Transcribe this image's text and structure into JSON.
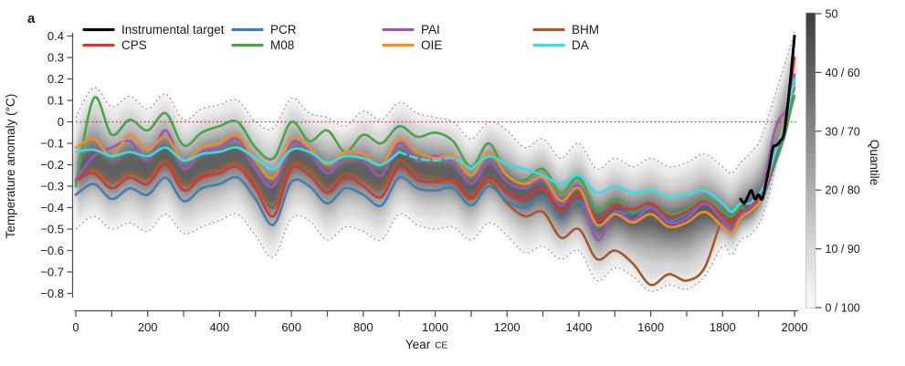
{
  "panel_label": "a",
  "axes": {
    "y_title": "Temperature anomaly (°C)",
    "x_title": "Year",
    "x_title_suffix": "CE",
    "y_ticks": [
      {
        "v": 0.4,
        "label": "0.4"
      },
      {
        "v": 0.3,
        "label": "0.3"
      },
      {
        "v": 0.2,
        "label": "0.2"
      },
      {
        "v": 0.1,
        "label": "0.1"
      },
      {
        "v": 0.0,
        "label": "0"
      },
      {
        "v": -0.1,
        "label": "−0.1"
      },
      {
        "v": -0.2,
        "label": "−0.2"
      },
      {
        "v": -0.3,
        "label": "−0.3"
      },
      {
        "v": -0.4,
        "label": "−0.4"
      },
      {
        "v": -0.5,
        "label": "−0.5"
      },
      {
        "v": -0.6,
        "label": "−0.6"
      },
      {
        "v": -0.7,
        "label": "−0.7"
      },
      {
        "v": -0.8,
        "label": "−0.8"
      }
    ],
    "x_ticks": [
      {
        "v": 0,
        "label": "0"
      },
      {
        "v": 100
      },
      {
        "v": 200,
        "label": "200"
      },
      {
        "v": 300
      },
      {
        "v": 400,
        "label": "400"
      },
      {
        "v": 500
      },
      {
        "v": 600,
        "label": "600"
      },
      {
        "v": 700
      },
      {
        "v": 800,
        "label": "800"
      },
      {
        "v": 900
      },
      {
        "v": 1000,
        "label": "1000"
      },
      {
        "v": 1100
      },
      {
        "v": 1200,
        "label": "1200"
      },
      {
        "v": 1300
      },
      {
        "v": 1400,
        "label": "1400"
      },
      {
        "v": 1500
      },
      {
        "v": 1600,
        "label": "1600"
      },
      {
        "v": 1700
      },
      {
        "v": 1800,
        "label": "1800"
      },
      {
        "v": 1900
      },
      {
        "v": 2000,
        "label": "2000"
      }
    ]
  },
  "legend": {
    "items": [
      {
        "label": "Instrumental target",
        "color": "#000000"
      },
      {
        "label": "CPS",
        "color": "#d9342f"
      },
      {
        "label": "PCR",
        "color": "#3f7fb5"
      },
      {
        "label": "M08",
        "color": "#47a447"
      },
      {
        "label": "PAI",
        "color": "#9a58b8"
      },
      {
        "label": "OIE",
        "color": "#f68b22"
      },
      {
        "label": "BHM",
        "color": "#a35a28"
      },
      {
        "label": "DA",
        "color": "#35dfe5"
      }
    ]
  },
  "colorbar": {
    "title": "Quantile",
    "ticks": [
      {
        "q": 50,
        "label": "50"
      },
      {
        "q": 40,
        "label": "40 / 60"
      },
      {
        "q": 30,
        "label": "30 / 70"
      },
      {
        "q": 20,
        "label": "20 / 80"
      },
      {
        "q": 10,
        "label": "10 / 90"
      },
      {
        "q": 0,
        "label": "0 / 100"
      }
    ],
    "top_color": "#3e3e3e",
    "bottom_color": "#f8f8f8"
  },
  "zero_line": {
    "value": 0,
    "color": "#c43f39"
  },
  "density": {
    "fractions": [
      1.0,
      0.8,
      0.6,
      0.44,
      0.3,
      0.17
    ],
    "colors": [
      "#ebebeb",
      "#d6d6d6",
      "#bcbcbc",
      "#9e9e9e",
      "#7f7f7f",
      "#5f5f5f"
    ],
    "blur": 3.5
  },
  "chart_data": {
    "type": "line",
    "title": "",
    "xlabel": "Year CE",
    "ylabel": "Temperature anomaly (°C)",
    "xlim": [
      0,
      2010
    ],
    "ylim": [
      -0.8,
      0.4
    ],
    "grid": false,
    "legend_position": "top",
    "years": [
      0,
      50,
      100,
      150,
      200,
      250,
      300,
      350,
      400,
      450,
      500,
      550,
      600,
      650,
      700,
      750,
      800,
      850,
      900,
      950,
      1000,
      1050,
      1100,
      1150,
      1200,
      1250,
      1300,
      1350,
      1400,
      1450,
      1500,
      1550,
      1600,
      1650,
      1700,
      1750,
      1800,
      1825,
      1850,
      1875,
      1900,
      1915,
      1930,
      1945,
      1960,
      1975,
      1990,
      2000
    ],
    "series": [
      {
        "name": "BHM",
        "color": "#a35a28",
        "values": [
          -0.28,
          -0.22,
          -0.28,
          -0.24,
          -0.26,
          -0.18,
          -0.29,
          -0.25,
          -0.22,
          -0.19,
          -0.28,
          -0.4,
          -0.2,
          -0.22,
          -0.3,
          -0.24,
          -0.27,
          -0.31,
          -0.18,
          -0.24,
          -0.26,
          -0.28,
          -0.36,
          -0.28,
          -0.38,
          -0.44,
          -0.42,
          -0.54,
          -0.5,
          -0.64,
          -0.6,
          -0.66,
          -0.76,
          -0.71,
          -0.74,
          -0.68,
          -0.45,
          -0.48,
          -0.42,
          -0.41,
          -0.37,
          -0.33,
          -0.26,
          -0.18,
          -0.1,
          -0.01,
          0.1,
          0.16
        ]
      },
      {
        "name": "M08",
        "color": "#47a447",
        "values": [
          -0.3,
          0.11,
          -0.06,
          0.01,
          -0.04,
          0.04,
          -0.11,
          -0.05,
          -0.02,
          0.0,
          -0.12,
          -0.17,
          0.0,
          -0.09,
          -0.04,
          -0.14,
          -0.06,
          -0.1,
          -0.02,
          -0.07,
          -0.05,
          -0.09,
          -0.21,
          -0.1,
          -0.25,
          -0.27,
          -0.22,
          -0.33,
          -0.26,
          -0.41,
          -0.36,
          -0.42,
          -0.38,
          -0.43,
          -0.41,
          -0.36,
          -0.42,
          -0.44,
          -0.4,
          -0.42,
          -0.37,
          -0.33,
          -0.27,
          -0.2,
          -0.13,
          -0.05,
          0.06,
          0.12
        ]
      },
      {
        "name": "PCR",
        "color": "#3f7fb5",
        "values": [
          -0.34,
          -0.29,
          -0.36,
          -0.31,
          -0.34,
          -0.26,
          -0.37,
          -0.31,
          -0.29,
          -0.26,
          -0.36,
          -0.48,
          -0.28,
          -0.3,
          -0.38,
          -0.31,
          -0.34,
          -0.39,
          -0.26,
          -0.31,
          -0.32,
          -0.31,
          -0.39,
          -0.3,
          -0.37,
          -0.4,
          -0.35,
          -0.45,
          -0.37,
          -0.49,
          -0.42,
          -0.43,
          -0.4,
          -0.46,
          -0.43,
          -0.38,
          -0.45,
          -0.47,
          -0.43,
          -0.42,
          -0.38,
          -0.34,
          -0.27,
          -0.18,
          -0.1,
          0.0,
          0.12,
          0.2
        ]
      },
      {
        "name": "CPS",
        "color": "#d9342f",
        "values": [
          -0.27,
          -0.24,
          -0.31,
          -0.26,
          -0.29,
          -0.2,
          -0.32,
          -0.26,
          -0.24,
          -0.21,
          -0.31,
          -0.44,
          -0.22,
          -0.25,
          -0.33,
          -0.26,
          -0.3,
          -0.35,
          -0.21,
          -0.27,
          -0.28,
          -0.27,
          -0.35,
          -0.26,
          -0.33,
          -0.36,
          -0.31,
          -0.42,
          -0.34,
          -0.46,
          -0.39,
          -0.41,
          -0.38,
          -0.44,
          -0.42,
          -0.37,
          -0.44,
          -0.47,
          -0.42,
          -0.41,
          -0.37,
          -0.33,
          -0.25,
          -0.16,
          -0.08,
          0.03,
          0.18,
          0.3
        ]
      },
      {
        "name": "PAI",
        "color": "#9a58b8",
        "values": [
          -0.27,
          -0.16,
          -0.12,
          -0.09,
          -0.18,
          -0.04,
          -0.22,
          -0.14,
          -0.12,
          -0.08,
          -0.22,
          -0.3,
          -0.1,
          -0.14,
          -0.24,
          -0.16,
          -0.18,
          -0.25,
          -0.1,
          -0.18,
          -0.16,
          -0.19,
          -0.29,
          -0.19,
          -0.28,
          -0.31,
          -0.27,
          -0.39,
          -0.3,
          -0.55,
          -0.42,
          -0.46,
          -0.4,
          -0.47,
          -0.45,
          -0.38,
          -0.46,
          -0.5,
          -0.44,
          -0.4,
          -0.34,
          -0.28,
          -0.16,
          -0.04,
          0.02,
          0.05,
          0.14,
          0.22
        ]
      },
      {
        "name": "OIE",
        "color": "#f68b22",
        "values": [
          -0.12,
          -0.08,
          -0.16,
          -0.06,
          -0.13,
          -0.07,
          -0.18,
          -0.12,
          -0.1,
          -0.06,
          -0.18,
          -0.26,
          -0.08,
          -0.12,
          -0.2,
          -0.14,
          -0.15,
          -0.2,
          -0.08,
          -0.14,
          -0.17,
          -0.16,
          -0.25,
          -0.14,
          -0.25,
          -0.29,
          -0.26,
          -0.37,
          -0.31,
          -0.48,
          -0.43,
          -0.47,
          -0.43,
          -0.49,
          -0.47,
          -0.42,
          -0.49,
          -0.52,
          -0.45,
          -0.42,
          -0.38,
          -0.33,
          -0.24,
          -0.15,
          -0.07,
          0.02,
          0.12,
          0.18
        ]
      },
      {
        "name": "DA",
        "color": "#35dfe5",
        "dash_between": [
          900,
          1100
        ],
        "values": [
          -0.14,
          -0.13,
          -0.16,
          -0.14,
          -0.16,
          -0.12,
          -0.18,
          -0.15,
          -0.14,
          -0.12,
          -0.17,
          -0.22,
          -0.13,
          -0.14,
          -0.19,
          -0.16,
          -0.17,
          -0.2,
          -0.14,
          -0.17,
          -0.18,
          -0.17,
          -0.22,
          -0.16,
          -0.2,
          -0.22,
          -0.25,
          -0.29,
          -0.25,
          -0.33,
          -0.3,
          -0.33,
          -0.32,
          -0.35,
          -0.34,
          -0.32,
          -0.38,
          -0.42,
          -0.38,
          -0.38,
          -0.34,
          -0.3,
          -0.23,
          -0.15,
          -0.08,
          0.0,
          0.12,
          0.2
        ]
      },
      {
        "name": "Instrumental target",
        "color": "#000000",
        "width": 3,
        "years": [
          1850,
          1860,
          1870,
          1880,
          1890,
          1900,
          1910,
          1920,
          1930,
          1940,
          1950,
          1960,
          1970,
          1980,
          1990,
          2000
        ],
        "values": [
          -0.36,
          -0.38,
          -0.35,
          -0.32,
          -0.36,
          -0.34,
          -0.36,
          -0.29,
          -0.21,
          -0.12,
          -0.11,
          -0.09,
          -0.06,
          0.06,
          0.22,
          0.4
        ]
      }
    ],
    "envelope_upper": [
      0.02,
      0.16,
      0.07,
      0.12,
      0.06,
      0.13,
      0.01,
      0.06,
      0.08,
      0.1,
      0.0,
      -0.03,
      0.11,
      0.04,
      0.02,
      -0.02,
      0.05,
      0.01,
      0.09,
      0.04,
      0.02,
      0.0,
      -0.08,
      0.0,
      -0.04,
      -0.12,
      -0.08,
      -0.17,
      -0.1,
      -0.22,
      -0.17,
      -0.21,
      -0.17,
      -0.21,
      -0.19,
      -0.15,
      -0.21,
      -0.24,
      -0.19,
      -0.15,
      -0.1,
      -0.04,
      0.04,
      0.12,
      0.2,
      0.28,
      0.36,
      0.42
    ],
    "envelope_lower": [
      -0.5,
      -0.44,
      -0.5,
      -0.47,
      -0.51,
      -0.43,
      -0.52,
      -0.49,
      -0.46,
      -0.43,
      -0.53,
      -0.63,
      -0.45,
      -0.46,
      -0.55,
      -0.49,
      -0.51,
      -0.55,
      -0.43,
      -0.48,
      -0.5,
      -0.49,
      -0.55,
      -0.47,
      -0.53,
      -0.61,
      -0.58,
      -0.64,
      -0.6,
      -0.74,
      -0.68,
      -0.72,
      -0.79,
      -0.76,
      -0.78,
      -0.72,
      -0.58,
      -0.62,
      -0.55,
      -0.53,
      -0.48,
      -0.42,
      -0.33,
      -0.22,
      -0.1,
      0.02,
      0.18,
      0.3
    ],
    "ensemble_median": [
      -0.24,
      -0.18,
      -0.24,
      -0.19,
      -0.22,
      -0.15,
      -0.25,
      -0.2,
      -0.18,
      -0.15,
      -0.25,
      -0.34,
      -0.17,
      -0.19,
      -0.27,
      -0.22,
      -0.23,
      -0.27,
      -0.17,
      -0.22,
      -0.23,
      -0.24,
      -0.31,
      -0.22,
      -0.3,
      -0.34,
      -0.31,
      -0.41,
      -0.35,
      -0.47,
      -0.42,
      -0.45,
      -0.43,
      -0.47,
      -0.45,
      -0.41,
      -0.45,
      -0.48,
      -0.43,
      -0.41,
      -0.37,
      -0.32,
      -0.24,
      -0.15,
      -0.07,
      0.02,
      0.15,
      0.24
    ]
  }
}
